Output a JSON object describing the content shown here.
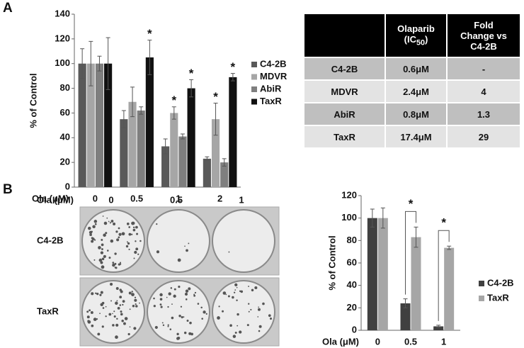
{
  "panel_labels": [
    "A",
    "B"
  ],
  "table": {
    "header": [
      {
        "text": "Olaparib (IC",
        "sub": "50",
        "tail": ")"
      },
      "Fold Change vs C4-2B"
    ],
    "rows": [
      [
        "C4-2B",
        "0.6μM",
        "-"
      ],
      [
        "MDVR",
        "2.4μM",
        "4"
      ],
      [
        "AbiR",
        "0.8μM",
        "1.3"
      ],
      [
        "TaxR",
        "17.4μM",
        "29"
      ]
    ]
  },
  "plate_image": {
    "x_label": "Ola (μM)",
    "columns": [
      "0",
      "0.5",
      "1"
    ],
    "rows": [
      "C4-2B",
      "TaxR"
    ]
  },
  "chart_data": [
    {
      "type": "bar",
      "y_label": "% of Control",
      "x_label": "Ola (μM)",
      "categories": [
        "0",
        "0.5",
        "1",
        "2"
      ],
      "series": [
        {
          "name": "C4-2B",
          "color": "#595959",
          "values": [
            100,
            55,
            33,
            23
          ],
          "errors": [
            12,
            7,
            6,
            1.5
          ]
        },
        {
          "name": "MDVR",
          "color": "#a6a6a6",
          "values": [
            100,
            69,
            60,
            55
          ],
          "errors": [
            18,
            12,
            5,
            13
          ]
        },
        {
          "name": "AbiR",
          "color": "#7f7f7f",
          "values": [
            100,
            62,
            41,
            20
          ],
          "errors": [
            6,
            3,
            2,
            3
          ]
        },
        {
          "name": "TaxR",
          "color": "#111111",
          "values": [
            100,
            105,
            80,
            89
          ],
          "errors": [
            21,
            14,
            7,
            3
          ]
        }
      ],
      "ylim": [
        0,
        140
      ],
      "yticks": [
        0,
        20,
        40,
        60,
        80,
        100,
        120,
        140
      ],
      "significance": [
        {
          "series": 3,
          "index": 1,
          "label": "*"
        },
        {
          "series": 1,
          "index": 2,
          "label": "*"
        },
        {
          "series": 3,
          "index": 2,
          "label": "*"
        },
        {
          "series": 1,
          "index": 3,
          "label": "*"
        },
        {
          "series": 3,
          "index": 3,
          "label": "*"
        }
      ]
    },
    {
      "type": "bar",
      "y_label": "% of Control",
      "x_label": "Ola (μM)",
      "categories": [
        "0",
        "0.5",
        "1"
      ],
      "series": [
        {
          "name": "C4-2B",
          "color": "#404040",
          "values": [
            100,
            24,
            3.5
          ],
          "errors": [
            8,
            4,
            1
          ]
        },
        {
          "name": "TaxR",
          "color": "#a6a6a6",
          "values": [
            100,
            83,
            73.5
          ],
          "errors": [
            9,
            9,
            1.5
          ]
        }
      ],
      "ylim": [
        0,
        120
      ],
      "yticks": [
        0,
        20,
        40,
        60,
        80,
        100,
        120
      ],
      "significance": [
        {
          "from": 0,
          "to": 1,
          "index": 1,
          "label": "*"
        },
        {
          "from": 0,
          "to": 1,
          "index": 2,
          "label": "*"
        }
      ]
    }
  ]
}
